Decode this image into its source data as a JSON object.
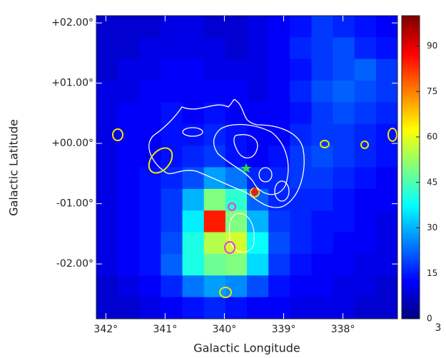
{
  "chart_data": {
    "type": "heatmap",
    "x_label": "Galactic Longitude",
    "y_label": "Galactic Latitude",
    "colormap": "jet",
    "xlim": [
      342.16,
      337.08
    ],
    "ylim": [
      -2.91,
      2.12
    ],
    "xticks": [
      {
        "value": 342,
        "label": "342°"
      },
      {
        "value": 341,
        "label": "341°"
      },
      {
        "value": 340,
        "label": "340°"
      },
      {
        "value": 339,
        "label": "339°"
      },
      {
        "value": 338,
        "label": "338°"
      }
    ],
    "yticks": [
      {
        "value": 2,
        "label": "+02.00°"
      },
      {
        "value": 1,
        "label": "+01.00°"
      },
      {
        "value": 0,
        "label": "+00.00°"
      },
      {
        "value": -1,
        "label": "-01.00°"
      },
      {
        "value": -2,
        "label": "-02.00°"
      }
    ],
    "zlim": [
      0,
      100
    ],
    "zticks": [
      0,
      15,
      30,
      45,
      60,
      75,
      90
    ],
    "colorbar_corner_label": "3",
    "values": [
      [
        8,
        8,
        8,
        10,
        10,
        8,
        8,
        10,
        12,
        14,
        18,
        16,
        14,
        12
      ],
      [
        8,
        8,
        10,
        10,
        10,
        10,
        8,
        10,
        12,
        16,
        18,
        20,
        16,
        14
      ],
      [
        8,
        10,
        10,
        12,
        12,
        10,
        10,
        10,
        12,
        14,
        18,
        20,
        22,
        18
      ],
      [
        10,
        10,
        12,
        12,
        12,
        12,
        12,
        10,
        12,
        16,
        20,
        22,
        20,
        18
      ],
      [
        10,
        12,
        12,
        14,
        12,
        14,
        12,
        12,
        12,
        14,
        18,
        20,
        18,
        16
      ],
      [
        10,
        12,
        12,
        14,
        14,
        16,
        14,
        12,
        12,
        16,
        18,
        18,
        16,
        14
      ],
      [
        10,
        12,
        12,
        14,
        16,
        18,
        14,
        12,
        14,
        18,
        20,
        18,
        16,
        14
      ],
      [
        10,
        12,
        14,
        16,
        20,
        28,
        24,
        16,
        16,
        18,
        18,
        16,
        14,
        12
      ],
      [
        10,
        12,
        14,
        18,
        30,
        50,
        42,
        22,
        16,
        16,
        16,
        14,
        12,
        12
      ],
      [
        10,
        12,
        14,
        18,
        36,
        85,
        50,
        30,
        18,
        16,
        14,
        14,
        12,
        10
      ],
      [
        10,
        12,
        14,
        20,
        40,
        55,
        58,
        38,
        20,
        16,
        14,
        12,
        12,
        10
      ],
      [
        10,
        12,
        14,
        22,
        40,
        48,
        50,
        34,
        18,
        14,
        12,
        12,
        10,
        10
      ],
      [
        8,
        10,
        12,
        16,
        24,
        28,
        26,
        20,
        14,
        12,
        12,
        10,
        10,
        8
      ],
      [
        8,
        8,
        10,
        12,
        14,
        16,
        14,
        12,
        12,
        10,
        10,
        10,
        8,
        8
      ]
    ]
  }
}
